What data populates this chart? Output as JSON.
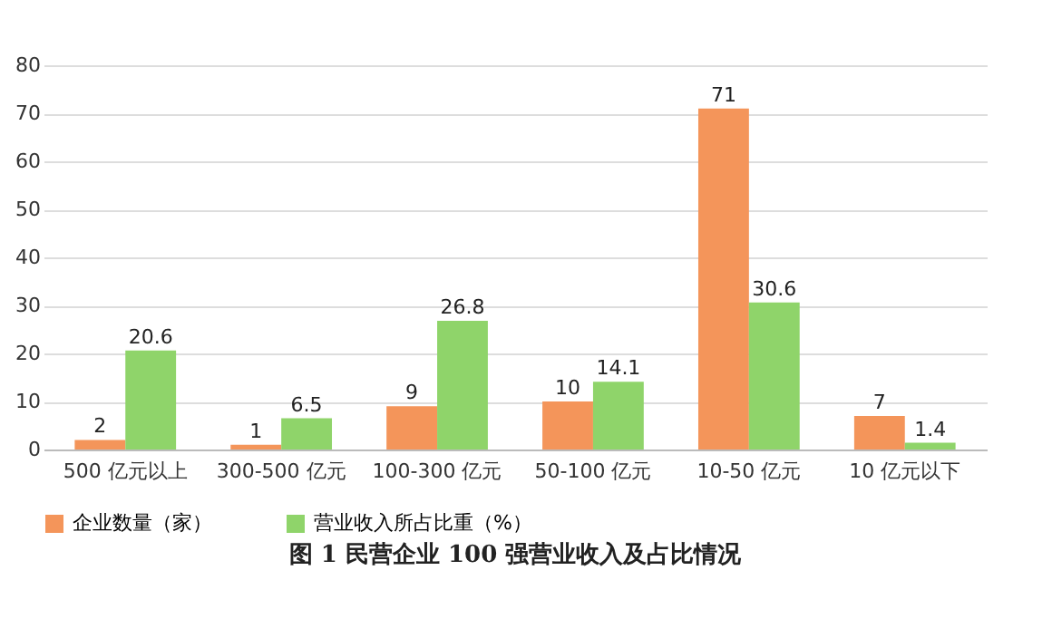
{
  "chart_data": {
    "type": "bar",
    "title": "图 1  民营企业 100 强营业收入及占比情况",
    "categories": [
      "500 亿元以上",
      "300-500 亿元",
      "100-300 亿元",
      "50-100 亿元",
      "10-50 亿元",
      "10 亿元以下"
    ],
    "series": [
      {
        "name": "企业数量（家）",
        "color": "#f4955a",
        "values": [
          2,
          1,
          9,
          10,
          71,
          7
        ]
      },
      {
        "name": "营业收入所占比重（%）",
        "color": "#8fd46a",
        "values": [
          20.6,
          6.5,
          26.8,
          14.1,
          30.6,
          1.4
        ]
      }
    ],
    "ylim": [
      0,
      80
    ],
    "yticks": [
      0,
      10,
      20,
      30,
      40,
      50,
      60,
      70,
      80
    ],
    "grid": "y",
    "legend": "bottom",
    "data_labels": true
  }
}
